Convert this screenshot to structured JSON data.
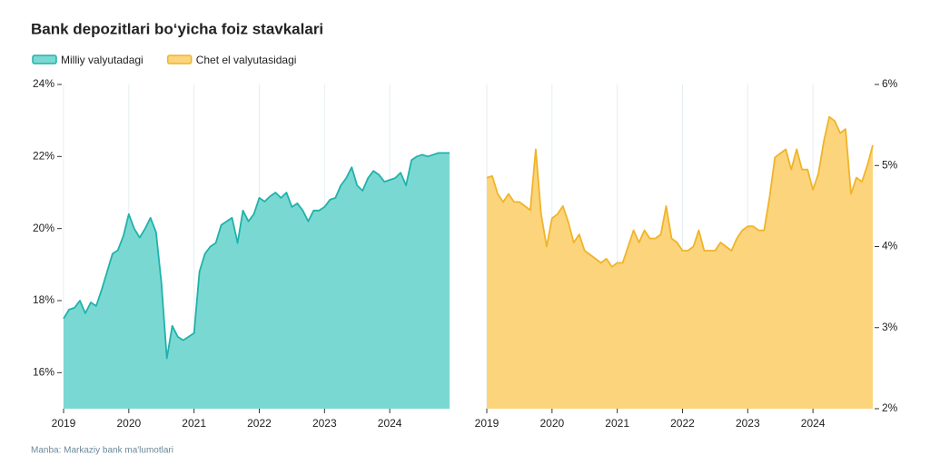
{
  "title": "Bank depozitlari bo‘yicha foiz stavkalari",
  "source": "Manba: Markaziy bank ma'lumotlari",
  "chart_data": [
    {
      "type": "area",
      "x": [
        2019,
        2019.083,
        2019.167,
        2019.25,
        2019.333,
        2019.417,
        2019.5,
        2019.583,
        2019.667,
        2019.75,
        2019.833,
        2019.917,
        2020,
        2020.083,
        2020.167,
        2020.25,
        2020.333,
        2020.417,
        2020.5,
        2020.583,
        2020.667,
        2020.75,
        2020.833,
        2020.917,
        2021,
        2021.083,
        2021.167,
        2021.25,
        2021.333,
        2021.417,
        2021.5,
        2021.583,
        2021.667,
        2021.75,
        2021.833,
        2021.917,
        2022,
        2022.083,
        2022.167,
        2022.25,
        2022.333,
        2022.417,
        2022.5,
        2022.583,
        2022.667,
        2022.75,
        2022.833,
        2022.917,
        2023,
        2023.083,
        2023.167,
        2023.25,
        2023.333,
        2023.417,
        2023.5,
        2023.583,
        2023.667,
        2023.75,
        2023.833,
        2023.917,
        2024,
        2024.083,
        2024.167,
        2024.25,
        2024.333,
        2024.417,
        2024.5,
        2024.583,
        2024.667,
        2024.75,
        2024.833,
        2024.917
      ],
      "series": [
        {
          "name": "Milliy valyutadagi",
          "color": "#20b2aa",
          "fill": "#7ad8d2",
          "values": [
            17.5,
            17.75,
            17.8,
            18.0,
            17.65,
            17.95,
            17.85,
            18.3,
            18.8,
            19.3,
            19.4,
            19.8,
            20.4,
            20.0,
            19.75,
            20.0,
            20.3,
            19.9,
            18.5,
            16.4,
            17.3,
            17.0,
            16.9,
            17.0,
            17.1,
            18.8,
            19.3,
            19.5,
            19.6,
            20.1,
            20.2,
            20.3,
            19.6,
            20.5,
            20.2,
            20.4,
            20.85,
            20.75,
            20.9,
            21.0,
            20.85,
            21.0,
            20.6,
            20.7,
            20.5,
            20.2,
            20.5,
            20.5,
            20.6,
            20.8,
            20.85,
            21.2,
            21.4,
            21.7,
            21.2,
            21.05,
            21.4,
            21.6,
            21.5,
            21.3,
            21.35,
            21.4,
            21.55,
            21.2,
            21.9,
            22.0,
            22.05,
            22.0,
            22.05,
            22.1,
            22.1,
            22.1
          ]
        }
      ],
      "xlim": [
        2019,
        2024.917
      ],
      "xticks": [
        2019,
        2020,
        2021,
        2022,
        2023,
        2024
      ],
      "ylim": [
        15,
        24
      ],
      "yticks": [
        {
          "value": 16,
          "label": "16%"
        },
        {
          "value": 18,
          "label": "18%"
        },
        {
          "value": 20,
          "label": "20%"
        },
        {
          "value": 22,
          "label": "22%"
        },
        {
          "value": 24,
          "label": "24%"
        }
      ],
      "y_axis_side": "left",
      "grid": true
    },
    {
      "type": "area",
      "x": [
        2019,
        2019.083,
        2019.167,
        2019.25,
        2019.333,
        2019.417,
        2019.5,
        2019.583,
        2019.667,
        2019.75,
        2019.833,
        2019.917,
        2020,
        2020.083,
        2020.167,
        2020.25,
        2020.333,
        2020.417,
        2020.5,
        2020.583,
        2020.667,
        2020.75,
        2020.833,
        2020.917,
        2021,
        2021.083,
        2021.167,
        2021.25,
        2021.333,
        2021.417,
        2021.5,
        2021.583,
        2021.667,
        2021.75,
        2021.833,
        2021.917,
        2022,
        2022.083,
        2022.167,
        2022.25,
        2022.333,
        2022.417,
        2022.5,
        2022.583,
        2022.667,
        2022.75,
        2022.833,
        2022.917,
        2023,
        2023.083,
        2023.167,
        2023.25,
        2023.333,
        2023.417,
        2023.5,
        2023.583,
        2023.667,
        2023.75,
        2023.833,
        2023.917,
        2024,
        2024.083,
        2024.167,
        2024.25,
        2024.333,
        2024.417,
        2024.5,
        2024.583,
        2024.667,
        2024.75,
        2024.833,
        2024.917
      ],
      "series": [
        {
          "name": "Chet el valyutasidagi",
          "color": "#f0b429",
          "fill": "#fbd47c",
          "values": [
            4.85,
            4.87,
            4.65,
            4.55,
            4.65,
            4.55,
            4.55,
            4.5,
            4.45,
            5.2,
            4.4,
            4.0,
            4.35,
            4.4,
            4.5,
            4.3,
            4.05,
            4.15,
            3.95,
            3.9,
            3.85,
            3.8,
            3.85,
            3.75,
            3.8,
            3.8,
            4.0,
            4.2,
            4.05,
            4.2,
            4.1,
            4.1,
            4.15,
            4.5,
            4.1,
            4.05,
            3.95,
            3.95,
            4.0,
            4.2,
            3.95,
            3.95,
            3.95,
            4.05,
            4.0,
            3.95,
            4.1,
            4.2,
            4.25,
            4.25,
            4.2,
            4.2,
            4.6,
            5.1,
            5.15,
            5.2,
            4.95,
            5.2,
            4.95,
            4.95,
            4.7,
            4.9,
            5.3,
            5.6,
            5.55,
            5.4,
            5.45,
            4.65,
            4.85,
            4.8,
            5.0,
            5.25
          ]
        }
      ],
      "xlim": [
        2019,
        2024.917
      ],
      "xticks": [
        2019,
        2020,
        2021,
        2022,
        2023,
        2024
      ],
      "ylim": [
        2,
        6
      ],
      "yticks": [
        {
          "value": 2,
          "label": "2%"
        },
        {
          "value": 3,
          "label": "3%"
        },
        {
          "value": 4,
          "label": "4%"
        },
        {
          "value": 5,
          "label": "5%"
        },
        {
          "value": 6,
          "label": "6%"
        }
      ],
      "y_axis_side": "right",
      "grid": true
    }
  ]
}
